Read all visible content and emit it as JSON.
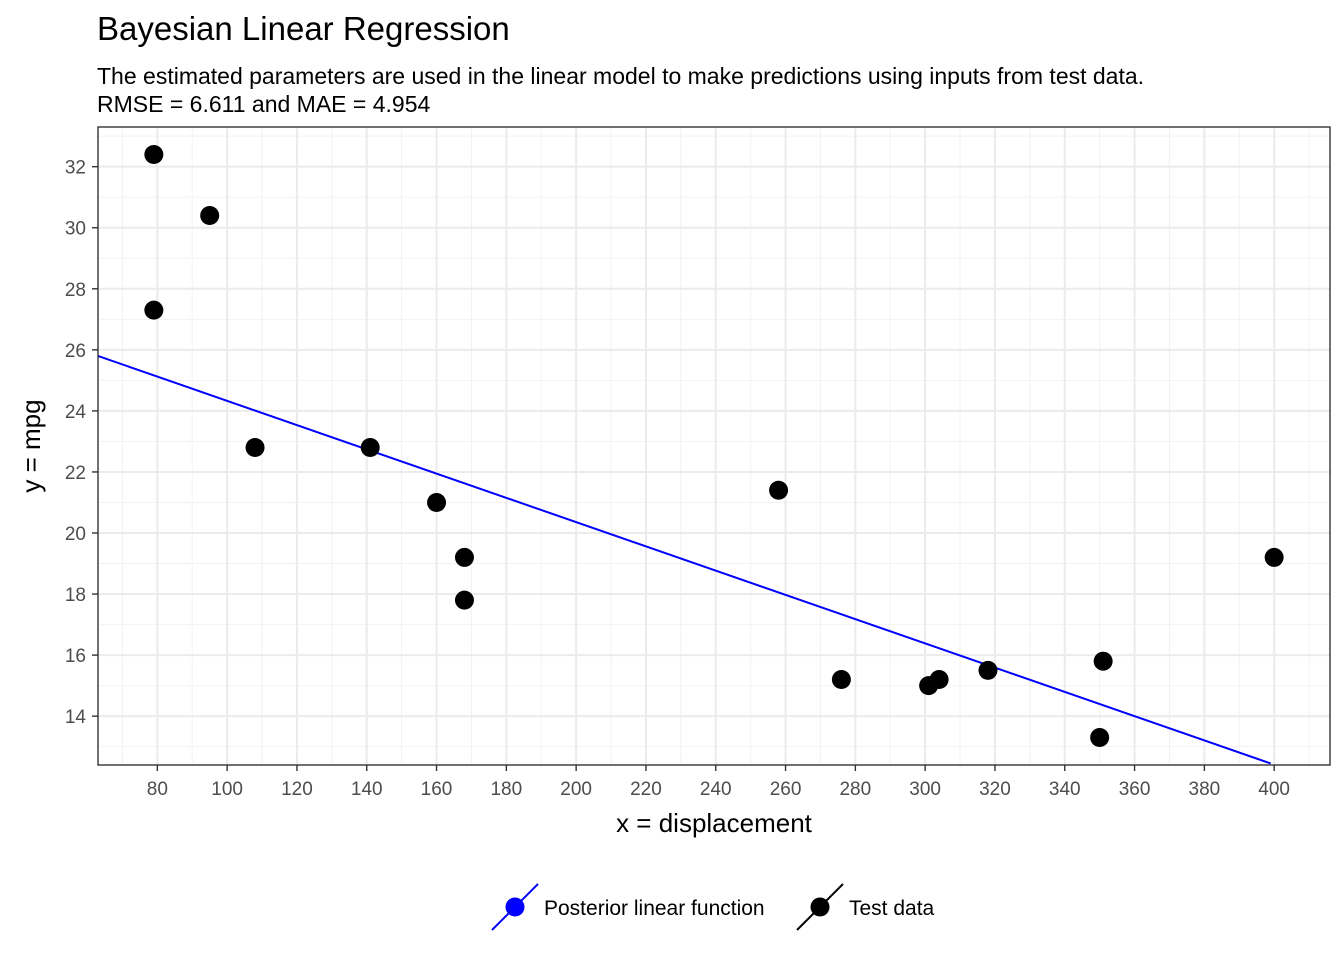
{
  "chart_data": {
    "type": "scatter",
    "title": "Bayesian Linear Regression",
    "subtitle_lines": [
      "The estimated parameters are used in the linear model to make predictions using inputs from test data.",
      " RMSE = 6.611 and MAE = 4.954"
    ],
    "xlabel": "x = displacement",
    "ylabel": "y = mpg",
    "xlim": [
      63,
      416
    ],
    "ylim": [
      12.4,
      33.3
    ],
    "x_ticks": [
      80,
      100,
      120,
      140,
      160,
      180,
      200,
      220,
      240,
      260,
      280,
      300,
      320,
      340,
      360,
      380,
      400
    ],
    "y_ticks": [
      14,
      16,
      18,
      20,
      22,
      24,
      26,
      28,
      30,
      32
    ],
    "grid": true,
    "legend_position": "bottom",
    "series": [
      {
        "name": "Posterior linear function",
        "kind": "line",
        "color": "#0000ff",
        "x": [
          63,
          399
        ],
        "y": [
          25.8,
          12.45
        ]
      },
      {
        "name": "Test data",
        "kind": "points",
        "color": "#000000",
        "x": [
          79,
          79,
          95,
          108,
          141,
          160,
          168,
          168,
          258,
          276,
          301,
          304,
          318,
          350,
          351,
          400
        ],
        "y": [
          32.4,
          27.3,
          30.4,
          22.8,
          22.8,
          21.0,
          19.2,
          17.8,
          21.4,
          15.2,
          15.0,
          15.2,
          15.5,
          13.3,
          15.8,
          19.2
        ]
      }
    ]
  }
}
